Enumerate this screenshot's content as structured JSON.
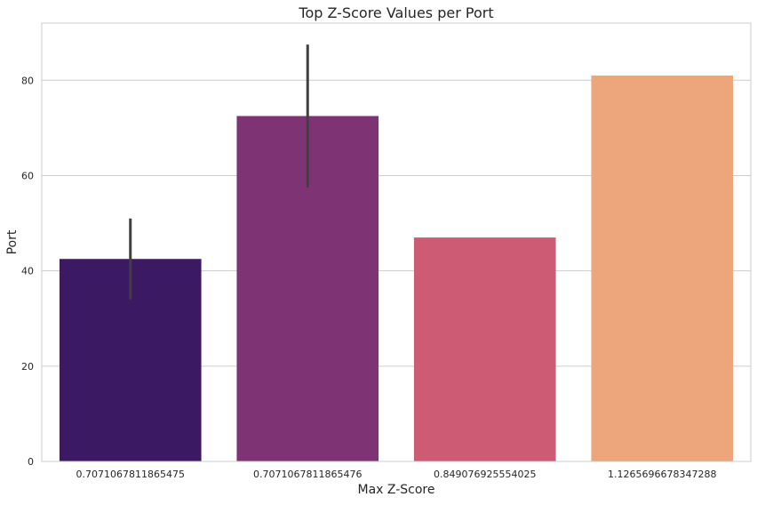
{
  "chart_data": {
    "type": "bar",
    "title": "Top Z-Score Values per Port",
    "xlabel": "Max Z-Score",
    "ylabel": "Port",
    "categories": [
      "0.7071067811865475",
      "0.7071067811865476",
      "0.849076925554025",
      "1.1265696678347288"
    ],
    "values": [
      42.5,
      72.5,
      47,
      81
    ],
    "error_bars": [
      {
        "low": 34,
        "high": 51
      },
      {
        "low": 57.5,
        "high": 87.5
      },
      null,
      null
    ],
    "colors": [
      "#3b1a63",
      "#7e3474",
      "#cd5b73",
      "#eda67c"
    ],
    "error_bar_color": "#404040",
    "ylim": [
      0,
      92
    ],
    "yticks": [
      0,
      20,
      40,
      60,
      80
    ],
    "grid": "horizontal",
    "legend": null
  }
}
